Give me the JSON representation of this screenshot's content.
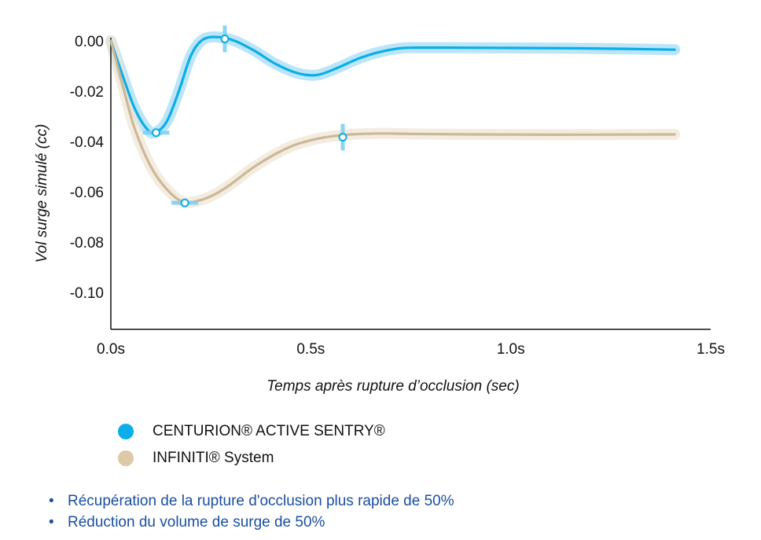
{
  "chart_data": {
    "type": "line",
    "xlabel": "Temps après rupture d’occlusion (sec)",
    "ylabel": "Vol surge simulé (cc)",
    "xlim": [
      0,
      1.5
    ],
    "ylim": [
      -0.115,
      0.0
    ],
    "x_ticks": [
      "0.0s",
      "0.5s",
      "1.0s",
      "1.5s"
    ],
    "x_tick_values": [
      0,
      0.5,
      1.0,
      1.5
    ],
    "y_ticks": [
      "0.00",
      "-0.02",
      "-0.04",
      "-0.06",
      "-0.08",
      "-0.10"
    ],
    "y_tick_values": [
      0.0,
      -0.02,
      -0.04,
      -0.06,
      -0.08,
      -0.1
    ],
    "grid": false,
    "legend_position": "bottom-left",
    "series": [
      {
        "name": "CENTURION® ACTIVE SENTRY®",
        "color": "#0aaee8",
        "band_color": "#a6dcf5",
        "x": [
          0,
          0.03,
          0.06,
          0.09,
          0.11,
          0.14,
          0.17,
          0.2,
          0.23,
          0.27,
          0.31,
          0.36,
          0.41,
          0.46,
          0.5,
          0.53,
          0.57,
          0.62,
          0.67,
          0.72,
          0.76,
          0.85,
          1.0,
          1.2,
          1.41
        ],
        "y": [
          0.0,
          -0.014,
          -0.027,
          -0.035,
          -0.0365,
          -0.032,
          -0.02,
          -0.006,
          0.0005,
          0.0015,
          0.0,
          -0.004,
          -0.009,
          -0.0125,
          -0.0137,
          -0.013,
          -0.0105,
          -0.007,
          -0.0045,
          -0.003,
          -0.0027,
          -0.0027,
          -0.0028,
          -0.003,
          -0.0035
        ]
      },
      {
        "name": "INFINITI® System",
        "color": "#cdb896",
        "band_color": "#efe6d6",
        "x": [
          0,
          0.03,
          0.06,
          0.1,
          0.14,
          0.18,
          0.22,
          0.26,
          0.3,
          0.35,
          0.4,
          0.45,
          0.5,
          0.55,
          0.6,
          0.68,
          0.75,
          0.9,
          1.1,
          1.41
        ],
        "y": [
          0.0,
          -0.018,
          -0.035,
          -0.05,
          -0.059,
          -0.064,
          -0.0635,
          -0.061,
          -0.057,
          -0.051,
          -0.046,
          -0.042,
          -0.0395,
          -0.038,
          -0.0372,
          -0.0368,
          -0.037,
          -0.0372,
          -0.0373,
          -0.0372
        ]
      }
    ],
    "markers": [
      {
        "series": 0,
        "x": 0.113,
        "y": -0.0365
      },
      {
        "series": 0,
        "x": 0.285,
        "y": 0.0008
      },
      {
        "series": 1,
        "x": 0.185,
        "y": -0.0644
      },
      {
        "series": 1,
        "x": 0.58,
        "y": -0.0383
      }
    ]
  },
  "bullets": [
    "Récupération de la rupture d'occlusion plus rapide de 50%",
    "Réduction du volume de surge de 50%"
  ]
}
